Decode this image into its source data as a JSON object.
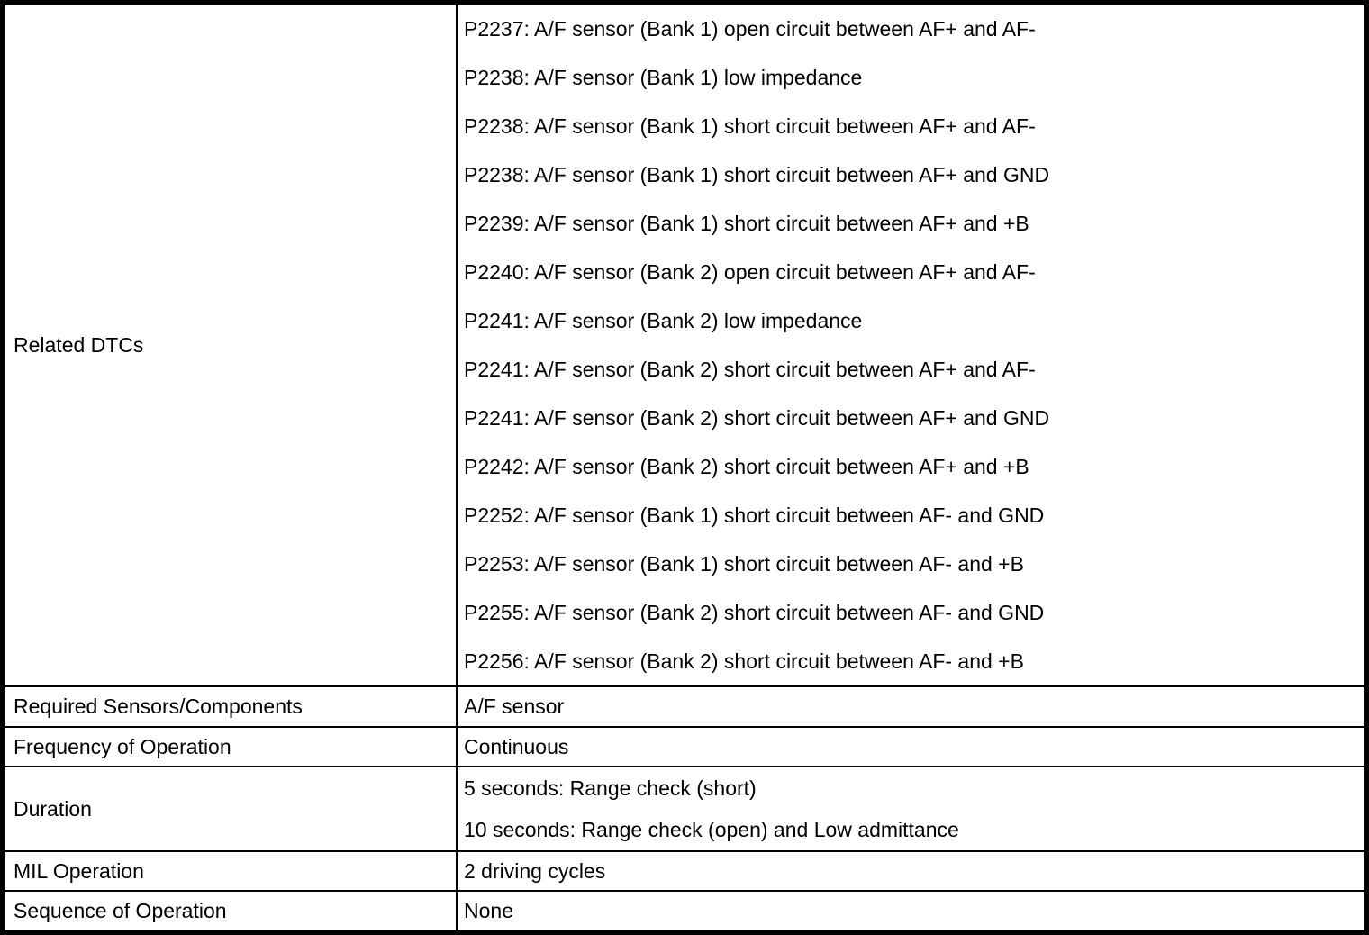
{
  "table": {
    "colors": {
      "border": "#000000",
      "background": "#ffffff",
      "text": "#000000"
    },
    "rows": [
      {
        "label": "Related DTCs",
        "lines": [
          "P2237: A/F sensor (Bank 1) open circuit between AF+ and AF-",
          "P2238: A/F sensor (Bank 1) low impedance",
          "P2238: A/F sensor (Bank 1) short circuit between AF+ and AF-",
          "P2238: A/F sensor (Bank 1) short circuit between AF+ and GND",
          "P2239: A/F sensor (Bank 1) short circuit between AF+ and +B",
          "P2240: A/F sensor (Bank 2) open circuit between AF+ and AF-",
          "P2241: A/F sensor (Bank 2) low impedance",
          "P2241: A/F sensor (Bank 2) short circuit between AF+ and AF-",
          "P2241: A/F sensor (Bank 2) short circuit between AF+ and GND",
          "P2242: A/F sensor (Bank 2) short circuit between AF+ and +B",
          "P2252: A/F sensor (Bank 1) short circuit between AF- and GND",
          "P2253: A/F sensor (Bank 1) short circuit between AF- and +B",
          "P2255: A/F sensor (Bank 2) short circuit between AF- and GND",
          "P2256: A/F sensor (Bank 2) short circuit between AF- and +B"
        ]
      },
      {
        "label": "Required Sensors/Components",
        "lines": [
          "A/F sensor"
        ]
      },
      {
        "label": "Frequency of Operation",
        "lines": [
          "Continuous"
        ]
      },
      {
        "label": "Duration",
        "lines": [
          "5 seconds: Range check (short)",
          "10 seconds: Range check (open) and Low admittance"
        ]
      },
      {
        "label": "MIL Operation",
        "lines": [
          "2 driving cycles"
        ]
      },
      {
        "label": "Sequence of Operation",
        "lines": [
          "None"
        ]
      }
    ]
  }
}
